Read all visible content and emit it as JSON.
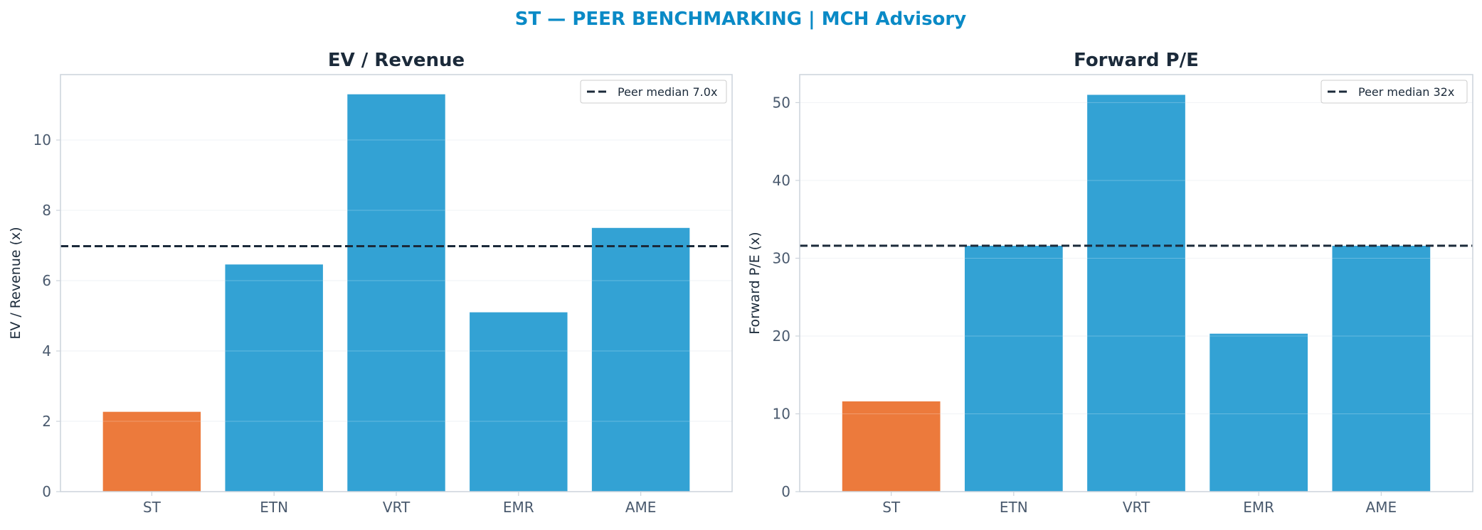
{
  "suptitle": "ST — PEER BENCHMARKING | MCH Advisory",
  "colors": {
    "title": "#0A8AC6",
    "panel_title": "#1B2A3A",
    "highlight_bar": "#EC7A3C",
    "peer_bar": "#33A2D4",
    "median_line": "#1B2A3A",
    "tick_text": "#4A5A6E",
    "spine": "#CCD3DB",
    "grid": "#EEF1F4"
  },
  "chart_data": [
    {
      "type": "bar",
      "title": "EV / Revenue",
      "ylabel": "EV / Revenue (x)",
      "xlabel": "",
      "categories": [
        "ST",
        "ETN",
        "VRT",
        "EMR",
        "AME"
      ],
      "values": [
        2.27,
        6.46,
        11.3,
        5.1,
        7.5
      ],
      "highlight": "ST",
      "ylim": [
        0,
        11.86
      ],
      "yticks": [
        0,
        2,
        4,
        6,
        8,
        10
      ],
      "grid": true,
      "reference_line": {
        "value": 6.98,
        "label": "Peer median 7.0x",
        "style": "dashed"
      },
      "legend": "top-right"
    },
    {
      "type": "bar",
      "title": "Forward P/E",
      "ylabel": "Forward P/E (x)",
      "xlabel": "",
      "categories": [
        "ST",
        "ETN",
        "VRT",
        "EMR",
        "AME"
      ],
      "values": [
        11.6,
        31.6,
        51.0,
        20.3,
        31.6
      ],
      "highlight": "ST",
      "ylim": [
        0,
        53.6
      ],
      "yticks": [
        0,
        10,
        20,
        30,
        40,
        50
      ],
      "grid": true,
      "reference_line": {
        "value": 31.6,
        "label": "Peer median 32x",
        "style": "dashed"
      },
      "legend": "top-right"
    }
  ]
}
